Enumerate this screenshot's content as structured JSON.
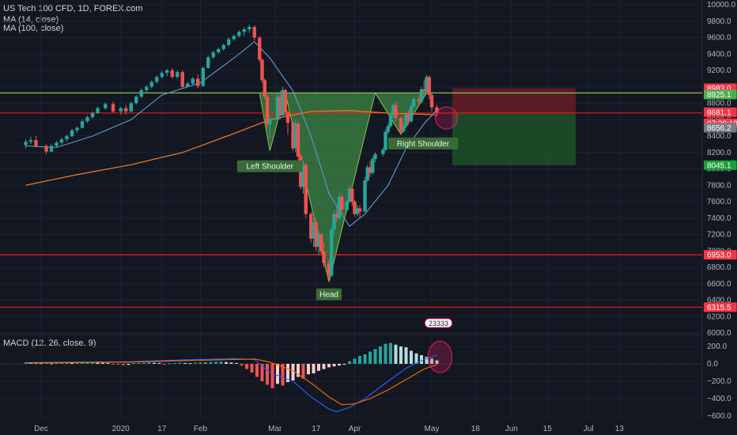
{
  "header": {
    "symbol_line": "US Tech 100 CFD, 1D, FOREX.com",
    "ma14": "MA (14, close)",
    "ma100": "MA (100, close)",
    "macd": "MACD (12, 26, close, 9)"
  },
  "colors": {
    "background": "#131722",
    "up": "#26a69a",
    "down": "#ef5350",
    "ma14": "#5b9bd5",
    "ma100": "#e0782d",
    "pattern_fill": "#4caf50",
    "neckline": "#8bc34a",
    "red_level": "#ff1a1a",
    "stop_zone": "#8b1e2a",
    "target_zone": "#1f5e2a",
    "label_bg": "#3a6b36"
  },
  "chart_data": {
    "type": "candlestick",
    "title": "US Tech 100 CFD, 1D, FOREX.com",
    "price_axis": {
      "min": 6000,
      "max": 10000,
      "ticks": [
        "10000.0",
        "9800.0",
        "9600.0",
        "9400.0",
        "9200.0",
        "9000.0",
        "8800.0",
        "8600.0",
        "8400.0",
        "8200.0",
        "8000.0",
        "7800.0",
        "7600.0",
        "7400.0",
        "7200.0",
        "7000.0",
        "6800.0",
        "6600.0",
        "6400.0",
        "6200.0",
        "6000.0"
      ]
    },
    "time_axis": {
      "labels": [
        "Dec",
        "2020",
        "17",
        "Feb",
        "Mar",
        "17",
        "Apr",
        "May",
        "18",
        "Jun",
        "15",
        "Jul",
        "13"
      ],
      "dates": [
        "2019-12-01",
        "2020-01-01",
        "2020-01-17",
        "2020-02-01",
        "2020-03-01",
        "2020-03-17",
        "2020-04-01",
        "2020-05-01",
        "2020-05-18",
        "2020-06-01",
        "2020-06-15",
        "2020-07-01",
        "2020-07-13"
      ]
    },
    "price_badges": [
      {
        "text": "8983.0",
        "color": "#f23645"
      },
      {
        "text": "8925.1",
        "color": "#4caf50"
      },
      {
        "text": "8681.1",
        "color": "#f23645"
      },
      {
        "text": "07:39:19",
        "color": "#f23645"
      },
      {
        "text": "8656.2",
        "color": "#787b86"
      },
      {
        "text": "8045.1",
        "color": "#1b9e3a"
      },
      {
        "text": "6953.0",
        "color": "#f23645"
      },
      {
        "text": "6315.5",
        "color": "#f23645"
      }
    ],
    "levels": {
      "neckline": 8925,
      "support_upper": 8681,
      "support_1": 6953,
      "support_2": 6315,
      "ma100_now": 8656
    },
    "position": {
      "entry": 8681,
      "stop": 8983,
      "target": 8045,
      "start": "2020-05-09",
      "end": "2020-06-26"
    },
    "candles": [
      [
        "2019-11-25",
        8290,
        8360,
        8250,
        8330
      ],
      [
        "2019-11-27",
        8330,
        8390,
        8300,
        8350
      ],
      [
        "2019-11-29",
        8350,
        8400,
        8260,
        8280
      ],
      [
        "2019-12-03",
        8280,
        8300,
        8180,
        8210
      ],
      [
        "2019-12-05",
        8210,
        8300,
        8200,
        8280
      ],
      [
        "2019-12-07",
        8280,
        8340,
        8260,
        8320
      ],
      [
        "2019-12-09",
        8320,
        8380,
        8290,
        8360
      ],
      [
        "2019-12-11",
        8360,
        8420,
        8330,
        8400
      ],
      [
        "2019-12-13",
        8400,
        8490,
        8380,
        8470
      ],
      [
        "2019-12-15",
        8470,
        8520,
        8440,
        8500
      ],
      [
        "2019-12-17",
        8500,
        8600,
        8490,
        8580
      ],
      [
        "2019-12-19",
        8580,
        8650,
        8560,
        8630
      ],
      [
        "2019-12-21",
        8630,
        8700,
        8610,
        8680
      ],
      [
        "2019-12-23",
        8680,
        8760,
        8670,
        8740
      ],
      [
        "2019-12-26",
        8740,
        8810,
        8720,
        8790
      ],
      [
        "2019-12-29",
        8790,
        8820,
        8680,
        8700
      ],
      [
        "2020-01-01",
        8700,
        8760,
        8660,
        8740
      ],
      [
        "2020-01-03",
        8740,
        8780,
        8660,
        8700
      ],
      [
        "2020-01-05",
        8700,
        8820,
        8690,
        8800
      ],
      [
        "2020-01-07",
        8800,
        8900,
        8780,
        8880
      ],
      [
        "2020-01-09",
        8880,
        8980,
        8860,
        8960
      ],
      [
        "2020-01-11",
        8960,
        9020,
        8930,
        9000
      ],
      [
        "2020-01-13",
        9000,
        9080,
        8980,
        9060
      ],
      [
        "2020-01-15",
        9060,
        9140,
        9040,
        9120
      ],
      [
        "2020-01-17",
        9120,
        9190,
        9100,
        9170
      ],
      [
        "2020-01-19",
        9170,
        9220,
        9130,
        9200
      ],
      [
        "2020-01-21",
        9200,
        9230,
        9100,
        9120
      ],
      [
        "2020-01-23",
        9120,
        9200,
        9100,
        9180
      ],
      [
        "2020-01-25",
        9180,
        9200,
        8980,
        9000
      ],
      [
        "2020-01-27",
        9000,
        9060,
        8990,
        9040
      ],
      [
        "2020-01-29",
        9040,
        9120,
        9020,
        9100
      ],
      [
        "2020-01-31",
        9100,
        9150,
        8980,
        9010
      ],
      [
        "2020-02-02",
        9010,
        9250,
        9000,
        9230
      ],
      [
        "2020-02-04",
        9230,
        9380,
        9220,
        9360
      ],
      [
        "2020-02-06",
        9360,
        9440,
        9340,
        9420
      ],
      [
        "2020-02-08",
        9420,
        9480,
        9400,
        9460
      ],
      [
        "2020-02-10",
        9460,
        9530,
        9440,
        9510
      ],
      [
        "2020-02-12",
        9510,
        9600,
        9490,
        9580
      ],
      [
        "2020-02-14",
        9580,
        9640,
        9560,
        9620
      ],
      [
        "2020-02-16",
        9620,
        9690,
        9600,
        9670
      ],
      [
        "2020-02-18",
        9670,
        9730,
        9620,
        9700
      ],
      [
        "2020-02-20",
        9700,
        9760,
        9660,
        9730
      ],
      [
        "2020-02-22",
        9730,
        9750,
        9560,
        9600
      ],
      [
        "2020-02-24",
        9600,
        9620,
        9300,
        9330
      ],
      [
        "2020-02-25",
        9330,
        9350,
        9050,
        9080
      ],
      [
        "2020-02-26",
        9080,
        9100,
        8850,
        8880
      ],
      [
        "2020-02-27",
        8880,
        8900,
        8500,
        8540
      ],
      [
        "2020-02-28",
        8540,
        8650,
        8380,
        8600
      ],
      [
        "2020-03-02",
        8600,
        8920,
        8560,
        8880
      ],
      [
        "2020-03-03",
        8880,
        8950,
        8600,
        8650
      ],
      [
        "2020-03-04",
        8650,
        9000,
        8640,
        8960
      ],
      [
        "2020-03-05",
        8960,
        8980,
        8650,
        8690
      ],
      [
        "2020-03-06",
        8690,
        8720,
        8420,
        8560
      ],
      [
        "2020-03-08",
        8560,
        8580,
        8220,
        8250
      ],
      [
        "2020-03-09",
        8250,
        8600,
        8200,
        8550
      ],
      [
        "2020-03-10",
        8550,
        8580,
        8100,
        8150
      ],
      [
        "2020-03-11",
        8150,
        8180,
        7750,
        7780
      ],
      [
        "2020-03-12",
        7780,
        8100,
        7700,
        8050
      ],
      [
        "2020-03-13",
        8050,
        8080,
        7400,
        7450
      ],
      [
        "2020-03-15",
        7450,
        7480,
        7100,
        7150
      ],
      [
        "2020-03-16",
        7150,
        7400,
        7050,
        7350
      ],
      [
        "2020-03-17",
        7350,
        7380,
        7000,
        7050
      ],
      [
        "2020-03-18",
        7050,
        7250,
        6950,
        7200
      ],
      [
        "2020-03-19",
        7200,
        7220,
        6960,
        6990
      ],
      [
        "2020-03-20",
        6990,
        7100,
        6800,
        6850
      ],
      [
        "2020-03-22",
        6850,
        6900,
        6620,
        6700
      ],
      [
        "2020-03-23",
        6700,
        7300,
        6680,
        7260
      ],
      [
        "2020-03-24",
        7260,
        7500,
        7200,
        7450
      ],
      [
        "2020-03-25",
        7450,
        7550,
        7350,
        7400
      ],
      [
        "2020-03-26",
        7400,
        7700,
        7380,
        7660
      ],
      [
        "2020-03-27",
        7660,
        7700,
        7450,
        7500
      ],
      [
        "2020-03-29",
        7500,
        7620,
        7480,
        7600
      ],
      [
        "2020-03-30",
        7600,
        7800,
        7580,
        7760
      ],
      [
        "2020-03-31",
        7760,
        7780,
        7550,
        7600
      ],
      [
        "2020-04-01",
        7600,
        7620,
        7420,
        7450
      ],
      [
        "2020-04-02",
        7450,
        7560,
        7420,
        7520
      ],
      [
        "2020-04-03",
        7520,
        7560,
        7400,
        7480
      ],
      [
        "2020-04-05",
        7480,
        7900,
        7470,
        7860
      ],
      [
        "2020-04-06",
        7860,
        8050,
        7840,
        8020
      ],
      [
        "2020-04-07",
        8020,
        8100,
        7900,
        7950
      ],
      [
        "2020-04-08",
        7950,
        8150,
        7930,
        8120
      ],
      [
        "2020-04-09",
        8120,
        8200,
        8080,
        8180
      ],
      [
        "2020-04-12",
        8180,
        8260,
        8150,
        8230
      ],
      [
        "2020-04-13",
        8230,
        8480,
        8220,
        8450
      ],
      [
        "2020-04-14",
        8450,
        8560,
        8420,
        8520
      ],
      [
        "2020-04-15",
        8520,
        8680,
        8500,
        8660
      ],
      [
        "2020-04-16",
        8660,
        8800,
        8620,
        8780
      ],
      [
        "2020-04-17",
        8780,
        8820,
        8580,
        8620
      ],
      [
        "2020-04-19",
        8620,
        8640,
        8420,
        8460
      ],
      [
        "2020-04-20",
        8460,
        8560,
        8440,
        8520
      ],
      [
        "2020-04-21",
        8520,
        8700,
        8500,
        8660
      ],
      [
        "2020-04-22",
        8660,
        8720,
        8540,
        8580
      ],
      [
        "2020-04-23",
        8580,
        8800,
        8560,
        8760
      ],
      [
        "2020-04-24",
        8760,
        8880,
        8740,
        8850
      ],
      [
        "2020-04-26",
        8850,
        8900,
        8780,
        8820
      ],
      [
        "2020-04-27",
        8820,
        9000,
        8800,
        8970
      ],
      [
        "2020-04-28",
        8970,
        9080,
        8900,
        8940
      ],
      [
        "2020-04-29",
        8940,
        9150,
        8920,
        9120
      ],
      [
        "2020-04-30",
        9120,
        9140,
        8850,
        8900
      ],
      [
        "2020-05-01",
        8900,
        8920,
        8700,
        8750
      ],
      [
        "2020-05-03",
        8750,
        8780,
        8640,
        8681
      ]
    ],
    "ma14": [
      [
        "2019-11-25",
        8280
      ],
      [
        "2019-12-07",
        8260
      ],
      [
        "2019-12-21",
        8400
      ],
      [
        "2020-01-05",
        8600
      ],
      [
        "2020-01-17",
        8900
      ],
      [
        "2020-02-01",
        9050
      ],
      [
        "2020-02-14",
        9350
      ],
      [
        "2020-02-22",
        9550
      ],
      [
        "2020-02-28",
        9350
      ],
      [
        "2020-03-08",
        8950
      ],
      [
        "2020-03-15",
        8400
      ],
      [
        "2020-03-22",
        7700
      ],
      [
        "2020-03-30",
        7300
      ],
      [
        "2020-04-05",
        7450
      ],
      [
        "2020-04-14",
        7800
      ],
      [
        "2020-04-21",
        8250
      ],
      [
        "2020-04-28",
        8550
      ],
      [
        "2020-05-03",
        8720
      ]
    ],
    "ma100": [
      [
        "2019-11-25",
        7800
      ],
      [
        "2019-12-15",
        7930
      ],
      [
        "2020-01-05",
        8050
      ],
      [
        "2020-01-25",
        8200
      ],
      [
        "2020-02-14",
        8430
      ],
      [
        "2020-02-28",
        8600
      ],
      [
        "2020-03-15",
        8700
      ],
      [
        "2020-03-30",
        8710
      ],
      [
        "2020-04-14",
        8680
      ],
      [
        "2020-04-28",
        8665
      ],
      [
        "2020-05-03",
        8656
      ]
    ],
    "pattern": {
      "neckline_price": 8925,
      "left_shoulder": {
        "date": "2020-02-28",
        "price": 8220,
        "label": "Left Shoulder"
      },
      "head": {
        "date": "2020-03-22",
        "price": 6620,
        "label": "Head"
      },
      "right_shoulder": {
        "date": "2020-04-19",
        "price": 8420,
        "label": "Right Shoulder"
      },
      "start_date": "2020-02-24",
      "end_date": "2020-04-29"
    },
    "macd": {
      "label": "MACD (12, 26, close, 9)",
      "axis_ticks": [
        "200.0",
        "0.0",
        "−200.0",
        "−400.0",
        "−600.0"
      ],
      "axis_values": [
        200,
        0,
        -200,
        -400,
        -600
      ],
      "min": -650,
      "max": 280,
      "hist_start": "2019-11-25",
      "hist_step_days": 2,
      "histogram": [
        15,
        12,
        10,
        8,
        10,
        5,
        8,
        12,
        15,
        10,
        12,
        15,
        18,
        20,
        15,
        12,
        10,
        -5,
        -10,
        -15,
        -12,
        8,
        10,
        12,
        15,
        12,
        10,
        -8,
        5,
        8,
        12,
        10,
        8,
        12,
        15,
        18,
        20,
        22,
        25,
        20,
        15,
        10,
        -20,
        -60,
        -100,
        -150,
        -200,
        -240,
        -280,
        -230,
        -250,
        -210,
        -190,
        -150,
        -170,
        -120,
        -110,
        -80,
        -60,
        -40,
        -30,
        -20,
        -10,
        30,
        60,
        90,
        110,
        140,
        170,
        200,
        230,
        240,
        220,
        200,
        190,
        150,
        120,
        100,
        80,
        60,
        40
      ],
      "macd_line": [
        [
          "2019-11-25",
          15
        ],
        [
          "2020-01-05",
          25
        ],
        [
          "2020-01-25",
          45
        ],
        [
          "2020-02-14",
          60
        ],
        [
          "2020-02-22",
          50
        ],
        [
          "2020-02-28",
          -100
        ],
        [
          "2020-03-08",
          -200
        ],
        [
          "2020-03-15",
          -380
        ],
        [
          "2020-03-22",
          -520
        ],
        [
          "2020-03-25",
          -550
        ],
        [
          "2020-03-30",
          -500
        ],
        [
          "2020-04-05",
          -400
        ],
        [
          "2020-04-14",
          -200
        ],
        [
          "2020-04-21",
          -50
        ],
        [
          "2020-04-28",
          50
        ],
        [
          "2020-05-03",
          100
        ]
      ],
      "signal_line": [
        [
          "2019-11-25",
          10
        ],
        [
          "2020-01-05",
          20
        ],
        [
          "2020-01-25",
          35
        ],
        [
          "2020-02-14",
          50
        ],
        [
          "2020-02-22",
          55
        ],
        [
          "2020-02-28",
          20
        ],
        [
          "2020-03-08",
          -80
        ],
        [
          "2020-03-15",
          -220
        ],
        [
          "2020-03-22",
          -380
        ],
        [
          "2020-03-27",
          -470
        ],
        [
          "2020-04-01",
          -460
        ],
        [
          "2020-04-07",
          -400
        ],
        [
          "2020-04-14",
          -300
        ],
        [
          "2020-04-21",
          -180
        ],
        [
          "2020-04-28",
          -60
        ],
        [
          "2020-05-03",
          -10
        ]
      ],
      "badge": "23333"
    }
  }
}
